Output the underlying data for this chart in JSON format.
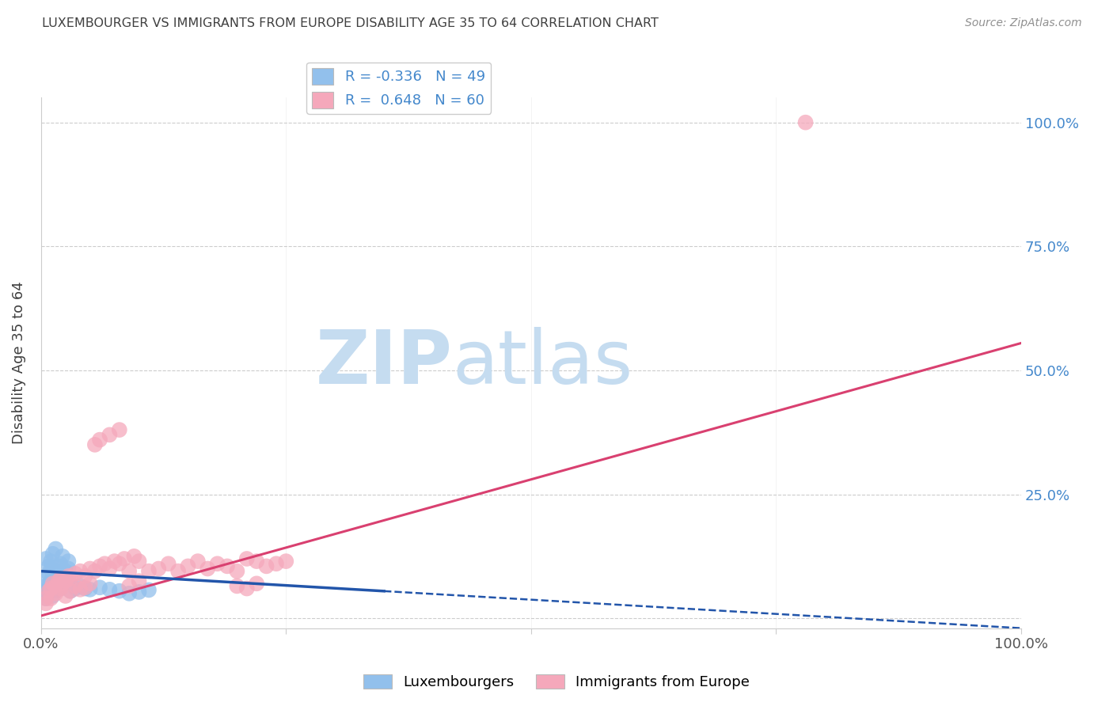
{
  "title": "LUXEMBOURGER VS IMMIGRANTS FROM EUROPE DISABILITY AGE 35 TO 64 CORRELATION CHART",
  "source": "Source: ZipAtlas.com",
  "ylabel": "Disability Age 35 to 64",
  "legend_labels": [
    "Luxembourgers",
    "Immigrants from Europe"
  ],
  "r_lux": -0.336,
  "n_lux": 49,
  "r_imm": 0.648,
  "n_imm": 60,
  "blue_color": "#92C0EC",
  "blue_line_color": "#2255AA",
  "pink_color": "#F5A8BB",
  "pink_line_color": "#D94070",
  "background_color": "#FFFFFF",
  "grid_color": "#CCCCCC",
  "title_color": "#404040",
  "source_color": "#909090",
  "axis_label_color": "#404040",
  "right_tick_color": "#4488CC",
  "watermark_zip_color": "#C5DCF0",
  "watermark_atlas_color": "#C5DCF0",
  "lux_x": [
    0.005,
    0.008,
    0.01,
    0.012,
    0.015,
    0.018,
    0.02,
    0.022,
    0.025,
    0.028,
    0.005,
    0.008,
    0.01,
    0.012,
    0.015,
    0.018,
    0.02,
    0.022,
    0.025,
    0.028,
    0.005,
    0.008,
    0.01,
    0.012,
    0.015,
    0.005,
    0.007,
    0.01,
    0.013,
    0.016,
    0.005,
    0.006,
    0.008,
    0.01,
    0.012,
    0.015,
    0.018,
    0.02,
    0.03,
    0.035,
    0.04,
    0.045,
    0.05,
    0.06,
    0.07,
    0.08,
    0.09,
    0.1,
    0.11
  ],
  "lux_y": [
    0.12,
    0.105,
    0.115,
    0.13,
    0.14,
    0.095,
    0.11,
    0.125,
    0.085,
    0.1,
    0.08,
    0.09,
    0.1,
    0.07,
    0.085,
    0.105,
    0.06,
    0.075,
    0.095,
    0.115,
    0.065,
    0.055,
    0.07,
    0.08,
    0.09,
    0.05,
    0.06,
    0.075,
    0.085,
    0.095,
    0.04,
    0.05,
    0.06,
    0.07,
    0.045,
    0.055,
    0.065,
    0.075,
    0.055,
    0.06,
    0.065,
    0.06,
    0.058,
    0.062,
    0.058,
    0.055,
    0.05,
    0.053,
    0.057
  ],
  "imm_x": [
    0.005,
    0.008,
    0.01,
    0.012,
    0.015,
    0.018,
    0.02,
    0.022,
    0.025,
    0.028,
    0.03,
    0.035,
    0.04,
    0.045,
    0.05,
    0.055,
    0.06,
    0.065,
    0.07,
    0.075,
    0.08,
    0.085,
    0.09,
    0.095,
    0.1,
    0.11,
    0.12,
    0.13,
    0.14,
    0.15,
    0.16,
    0.17,
    0.18,
    0.19,
    0.2,
    0.21,
    0.22,
    0.23,
    0.24,
    0.25,
    0.005,
    0.01,
    0.015,
    0.02,
    0.025,
    0.03,
    0.035,
    0.04,
    0.045,
    0.05,
    0.055,
    0.06,
    0.07,
    0.08,
    0.09,
    0.1,
    0.2,
    0.21,
    0.22,
    0.78
  ],
  "imm_y": [
    0.04,
    0.055,
    0.06,
    0.07,
    0.065,
    0.075,
    0.08,
    0.07,
    0.075,
    0.085,
    0.08,
    0.09,
    0.095,
    0.085,
    0.1,
    0.095,
    0.105,
    0.11,
    0.1,
    0.115,
    0.11,
    0.12,
    0.095,
    0.125,
    0.115,
    0.095,
    0.1,
    0.11,
    0.095,
    0.105,
    0.115,
    0.1,
    0.11,
    0.105,
    0.095,
    0.12,
    0.115,
    0.105,
    0.11,
    0.115,
    0.03,
    0.04,
    0.05,
    0.06,
    0.045,
    0.055,
    0.065,
    0.058,
    0.062,
    0.07,
    0.35,
    0.36,
    0.37,
    0.38,
    0.065,
    0.075,
    0.065,
    0.06,
    0.07,
    1.0
  ],
  "lux_line_x_start": 0.0,
  "lux_line_x_end": 1.0,
  "lux_line_y_start": 0.095,
  "lux_line_y_end": -0.02,
  "lux_line_solid_end_x": 0.35,
  "imm_line_x_start": 0.0,
  "imm_line_x_end": 1.0,
  "imm_line_y_start": 0.005,
  "imm_line_y_end": 0.555,
  "xlim": [
    0.0,
    1.0
  ],
  "ylim": [
    -0.02,
    1.05
  ],
  "xticks": [
    0.0,
    0.25,
    0.5,
    0.75,
    1.0
  ],
  "yticks": [
    0.0,
    0.25,
    0.5,
    0.75,
    1.0
  ]
}
